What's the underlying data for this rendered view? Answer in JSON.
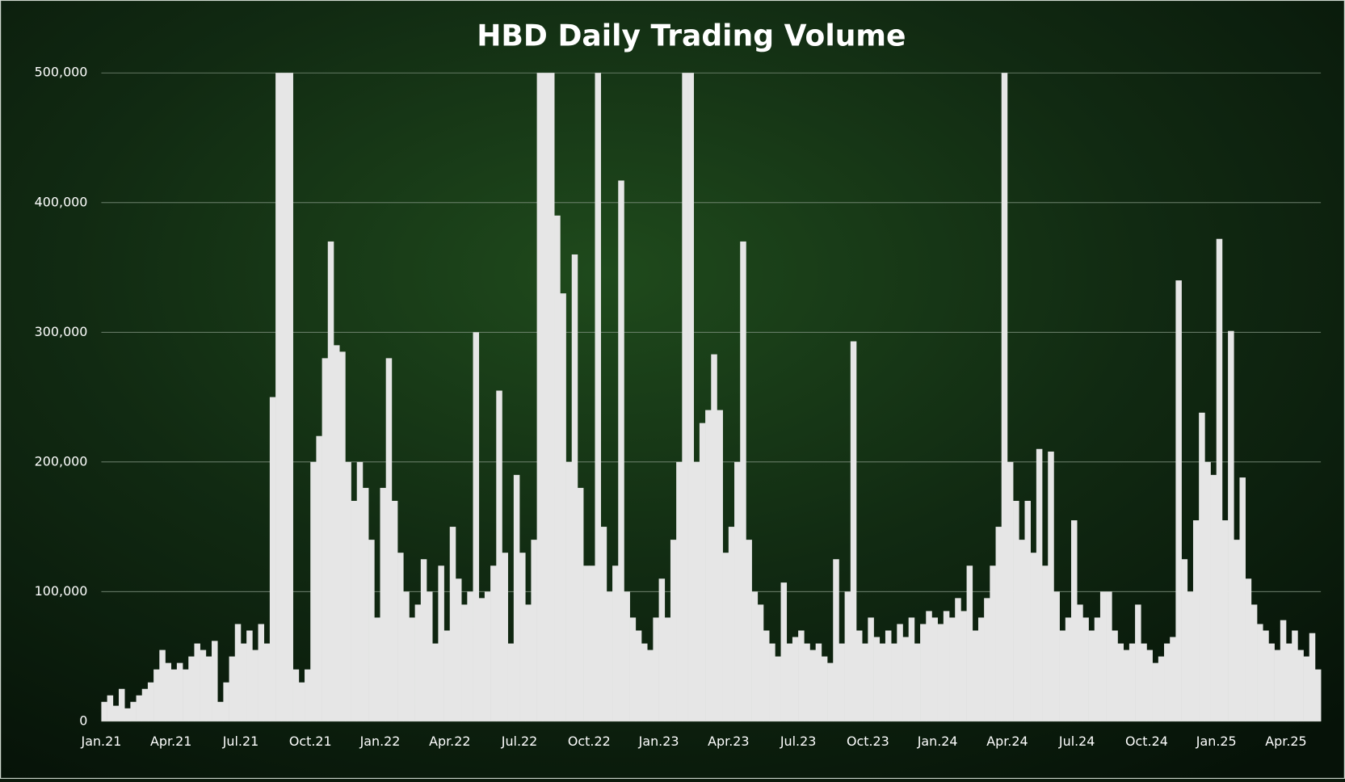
{
  "chart_data": {
    "type": "bar",
    "title": "HBD Daily Trading Volume",
    "color": "#e6e6e6",
    "grid": true,
    "ylim": [
      0,
      500000
    ],
    "yticks": [
      0,
      {
        "value": 100000,
        "label": "100,000"
      },
      {
        "value": 200000,
        "label": "200,000"
      },
      {
        "value": 300000,
        "label": "300,000"
      },
      {
        "value": 400000,
        "label": "400,000"
      },
      {
        "value": 500000,
        "label": "500,000"
      }
    ],
    "categories": [
      "Jan.21",
      null,
      null,
      null,
      null,
      null,
      null,
      null,
      null,
      null,
      null,
      null,
      "Apr.21",
      null,
      null,
      null,
      null,
      null,
      null,
      null,
      null,
      null,
      null,
      null,
      "Jul.21",
      null,
      null,
      null,
      null,
      null,
      null,
      null,
      null,
      null,
      null,
      null,
      "Oct.21",
      null,
      null,
      null,
      null,
      null,
      null,
      null,
      null,
      null,
      null,
      null,
      "Jan.22",
      null,
      null,
      null,
      null,
      null,
      null,
      null,
      null,
      null,
      null,
      null,
      "Apr.22",
      null,
      null,
      null,
      null,
      null,
      null,
      null,
      null,
      null,
      null,
      null,
      "Jul.22",
      null,
      null,
      null,
      null,
      null,
      null,
      null,
      null,
      null,
      null,
      null,
      "Oct.22",
      null,
      null,
      null,
      null,
      null,
      null,
      null,
      null,
      null,
      null,
      null,
      "Jan.23",
      null,
      null,
      null,
      null,
      null,
      null,
      null,
      null,
      null,
      null,
      null,
      "Apr.23",
      null,
      null,
      null,
      null,
      null,
      null,
      null,
      null,
      null,
      null,
      null,
      "Jul.23",
      null,
      null,
      null,
      null,
      null,
      null,
      null,
      null,
      null,
      null,
      null,
      "Oct.23",
      null,
      null,
      null,
      null,
      null,
      null,
      null,
      null,
      null,
      null,
      null,
      "Jan.24",
      null,
      null,
      null,
      null,
      null,
      null,
      null,
      null,
      null,
      null,
      null,
      "Apr.24",
      null,
      null,
      null,
      null,
      null,
      null,
      null,
      null,
      null,
      null,
      null,
      "Jul.24",
      null,
      null,
      null,
      null,
      null,
      null,
      null,
      null,
      null,
      null,
      null,
      "Oct.24",
      null,
      null,
      null,
      null,
      null,
      null,
      null,
      null,
      null,
      null,
      null,
      "Jan.25",
      null,
      null,
      null,
      null,
      null,
      null,
      null,
      null,
      null,
      null,
      null,
      "Apr.25",
      null,
      null,
      null,
      null,
      null
    ],
    "values": [
      15000,
      20000,
      12000,
      25000,
      10000,
      15000,
      20000,
      25000,
      30000,
      40000,
      55000,
      45000,
      40000,
      45000,
      40000,
      50000,
      60000,
      55000,
      50000,
      62000,
      15000,
      30000,
      50000,
      75000,
      60000,
      70000,
      55000,
      75000,
      60000,
      250000,
      500000,
      500000,
      500000,
      40000,
      30000,
      40000,
      200000,
      220000,
      280000,
      370000,
      290000,
      285000,
      200000,
      170000,
      200000,
      180000,
      140000,
      80000,
      180000,
      280000,
      170000,
      130000,
      100000,
      80000,
      90000,
      125000,
      100000,
      60000,
      120000,
      70000,
      150000,
      110000,
      90000,
      100000,
      300000,
      95000,
      100000,
      120000,
      255000,
      130000,
      60000,
      190000,
      130000,
      90000,
      140000,
      500000,
      500000,
      500000,
      390000,
      330000,
      200000,
      360000,
      180000,
      120000,
      120000,
      500000,
      150000,
      100000,
      120000,
      417000,
      100000,
      80000,
      70000,
      60000,
      55000,
      80000,
      110000,
      80000,
      140000,
      200000,
      500000,
      500000,
      200000,
      230000,
      240000,
      283000,
      240000,
      130000,
      150000,
      200000,
      370000,
      140000,
      100000,
      90000,
      70000,
      60000,
      50000,
      107000,
      60000,
      65000,
      70000,
      60000,
      55000,
      60000,
      50000,
      45000,
      125000,
      60000,
      100000,
      293000,
      70000,
      60000,
      80000,
      65000,
      60000,
      70000,
      60000,
      75000,
      65000,
      80000,
      60000,
      75000,
      85000,
      80000,
      75000,
      85000,
      80000,
      95000,
      85000,
      120000,
      70000,
      80000,
      95000,
      120000,
      150000,
      500000,
      200000,
      170000,
      140000,
      170000,
      130000,
      210000,
      120000,
      208000,
      100000,
      70000,
      80000,
      155000,
      90000,
      80000,
      70000,
      80000,
      100000,
      100000,
      70000,
      60000,
      55000,
      60000,
      90000,
      60000,
      55000,
      45000,
      50000,
      60000,
      65000,
      340000,
      125000,
      100000,
      155000,
      238000,
      200000,
      190000,
      372000,
      155000,
      301000,
      140000,
      188000,
      110000,
      90000,
      75000,
      70000,
      60000,
      55000,
      78000,
      60000,
      70000,
      55000,
      50000,
      68000,
      40000
    ]
  }
}
